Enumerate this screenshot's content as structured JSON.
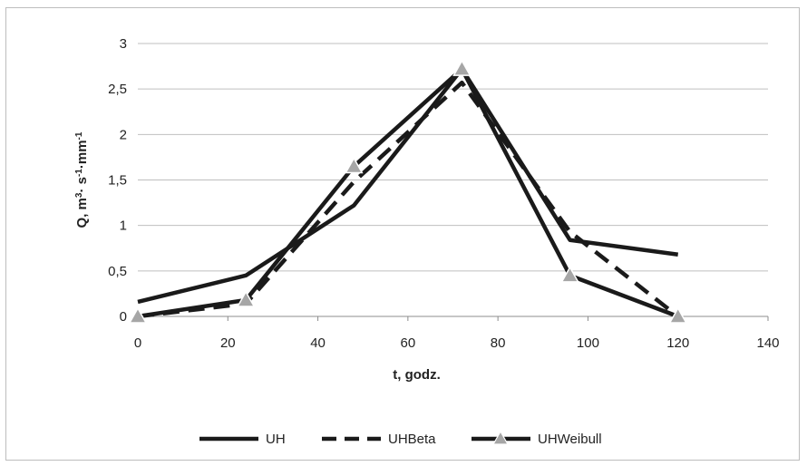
{
  "chart_data": {
    "type": "line",
    "xlabel": "t, godz.",
    "ylabel_parts": [
      "Q, m",
      "3",
      "· s",
      "-1",
      "·mm",
      "-1"
    ],
    "xlim": [
      0,
      140
    ],
    "ylim": [
      0,
      3
    ],
    "xticks": [
      0,
      20,
      40,
      60,
      80,
      100,
      120,
      140
    ],
    "yticks": [
      0,
      0.5,
      1,
      1.5,
      2,
      2.5,
      3
    ],
    "ytick_labels": [
      "0",
      "0,5",
      "1",
      "1,5",
      "2",
      "2,5",
      "3"
    ],
    "grid": "horizontal",
    "legend_position": "bottom",
    "series": [
      {
        "name": "UH",
        "style": "solid",
        "color": "#1a1a1a",
        "x": [
          0,
          24,
          48,
          72,
          96,
          120
        ],
        "y": [
          0.16,
          0.45,
          1.22,
          2.72,
          0.84,
          0.68
        ]
      },
      {
        "name": "UHBeta",
        "style": "dashed",
        "color": "#1a1a1a",
        "x": [
          0,
          24,
          48,
          72,
          96,
          120
        ],
        "y": [
          0.0,
          0.14,
          1.48,
          2.57,
          0.93,
          0.0
        ]
      },
      {
        "name": "UHWeibull",
        "style": "solid-triangle-markers",
        "color": "#1a1a1a",
        "marker_fill": "#a6a6a6",
        "x": [
          0,
          24,
          48,
          72,
          96,
          120
        ],
        "y": [
          0.0,
          0.18,
          1.65,
          2.72,
          0.45,
          0.0
        ]
      }
    ]
  }
}
